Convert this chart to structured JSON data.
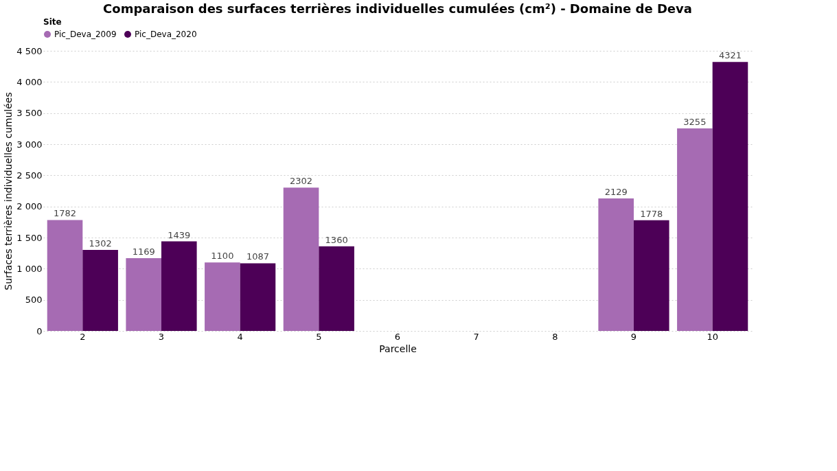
{
  "chart_data": {
    "type": "bar",
    "title": "Comparaison des surfaces terrières individuelles cumulées (cm²) - Domaine de Deva",
    "xlabel": "Parcelle",
    "ylabel": "Surfaces terrières individuelles cumulées",
    "legend_title": "Site",
    "legend": "top",
    "categories": [
      "2",
      "3",
      "4",
      "5",
      "6",
      "7",
      "8",
      "9",
      "10"
    ],
    "series": [
      {
        "name": "Pic_Deva_2009",
        "color": "#a66bb3",
        "values": [
          1782,
          1169,
          1100,
          2302,
          null,
          null,
          null,
          2129,
          3255
        ]
      },
      {
        "name": "Pic_Deva_2020",
        "color": "#4d0057",
        "values": [
          1302,
          1439,
          1087,
          1360,
          null,
          null,
          null,
          1778,
          4321
        ]
      }
    ],
    "ylim": [
      0,
      4500
    ],
    "yticks": [
      0,
      500,
      {
        "value": 1000,
        "label": "1 000"
      },
      {
        "value": 1500,
        "label": "1 500"
      },
      {
        "value": 2000,
        "label": "2 000"
      },
      {
        "value": 2500,
        "label": "2 500"
      },
      {
        "value": 3000,
        "label": "3 000"
      },
      {
        "value": 3500,
        "label": "3 500"
      },
      {
        "value": 4000,
        "label": "4 000"
      },
      {
        "value": 4500,
        "label": "4 500"
      }
    ],
    "grid": "y",
    "data_labels": true
  }
}
